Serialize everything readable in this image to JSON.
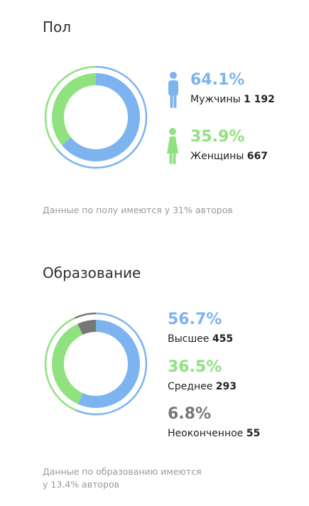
{
  "colors": {
    "blue": "#7db3ef",
    "green": "#8fe27f",
    "gray": "#777777"
  },
  "gender": {
    "title": "Пол",
    "note": "Данные по полу имеются у 31% авторов",
    "chart_data": {
      "type": "pie",
      "categories": [
        "Мужчины",
        "Женщины"
      ],
      "values": [
        64.1,
        35.9
      ],
      "counts": [
        1192,
        667
      ],
      "colors": [
        "#7db3ef",
        "#8fe27f"
      ]
    },
    "items": [
      {
        "pct": "64.1%",
        "label": "Мужчины",
        "count": "1 192",
        "icon": "male-person-icon"
      },
      {
        "pct": "35.9%",
        "label": "Женщины",
        "count": "667",
        "icon": "female-person-icon"
      }
    ]
  },
  "education": {
    "title": "Образование",
    "note_line1": "Данные по образованию имеются",
    "note_line2": "у 13.4% авторов",
    "chart_data": {
      "type": "pie",
      "categories": [
        "Высшее",
        "Среднее",
        "Неоконченное"
      ],
      "values": [
        56.7,
        36.5,
        6.8
      ],
      "counts": [
        455,
        293,
        55
      ],
      "colors": [
        "#7db3ef",
        "#8fe27f",
        "#777777"
      ]
    },
    "items": [
      {
        "pct": "56.7%",
        "label": "Высшее",
        "count": "455"
      },
      {
        "pct": "36.5%",
        "label": "Среднее",
        "count": "293"
      },
      {
        "pct": "6.8%",
        "label": "Неоконченное",
        "count": "55"
      }
    ]
  }
}
